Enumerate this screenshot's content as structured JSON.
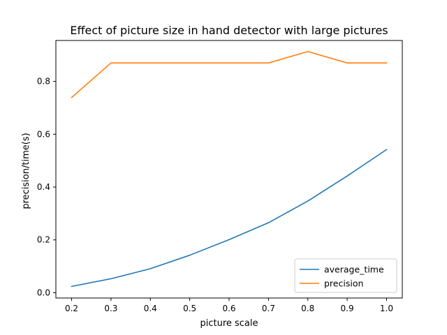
{
  "chart_data": {
    "type": "line",
    "title": "Effect of picture size in hand detector with large pictures",
    "xlabel": "picture scale",
    "ylabel": "precision/time(s)",
    "xlim": [
      0.16,
      1.04
    ],
    "ylim": [
      -0.02,
      0.955
    ],
    "xticks": [
      0.2,
      0.3,
      0.4,
      0.5,
      0.6,
      0.7,
      0.8,
      0.9,
      1.0
    ],
    "xtick_labels": [
      "0.2",
      "0.3",
      "0.4",
      "0.5",
      "0.6",
      "0.7",
      "0.8",
      "0.9",
      "1.0"
    ],
    "yticks": [
      0.0,
      0.2,
      0.4,
      0.6,
      0.8
    ],
    "ytick_labels": [
      "0.0",
      "0.2",
      "0.4",
      "0.6",
      "0.8"
    ],
    "grid": false,
    "legend_position": "lower-right",
    "x": [
      0.2,
      0.3,
      0.4,
      0.5,
      0.6,
      0.7,
      0.8,
      0.9,
      1.0
    ],
    "series": [
      {
        "name": "average_time",
        "color": "#1f77b4",
        "values": [
          0.024,
          0.053,
          0.091,
          0.142,
          0.201,
          0.265,
          0.347,
          0.442,
          0.542
        ]
      },
      {
        "name": "precision",
        "color": "#ff7f0e",
        "values": [
          0.739,
          0.87,
          0.87,
          0.87,
          0.87,
          0.87,
          0.913,
          0.87,
          0.87
        ]
      }
    ]
  }
}
